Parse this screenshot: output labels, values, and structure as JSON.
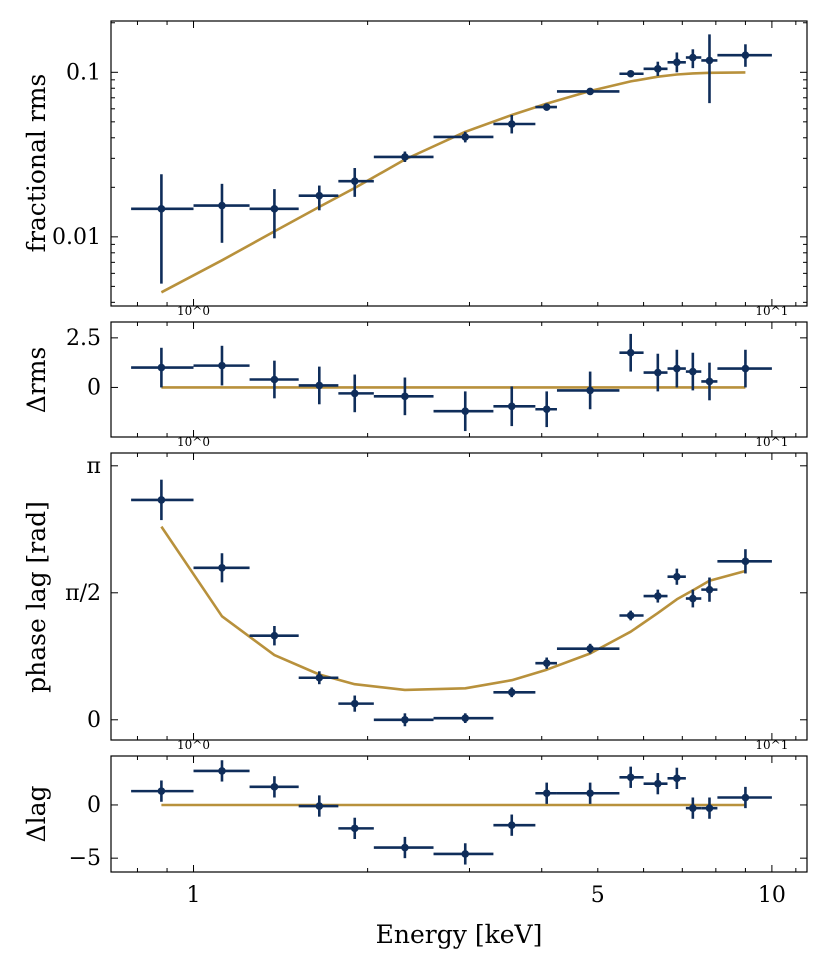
{
  "chart_data": {
    "type": "scatter",
    "xlabel": "Energy [keV]",
    "xscale": "log",
    "xlim": [
      0.72,
      11.5
    ],
    "x_major_ticks": [
      1,
      10
    ],
    "x_major_tick_labels_panels": [
      "10^0",
      "10^1"
    ],
    "x_bottom_tick_values": [
      1,
      5,
      10
    ],
    "x_bottom_tick_labels": [
      "1",
      "5",
      "10"
    ],
    "colors": {
      "data": "#0f2d5a",
      "model": "#b8913c"
    },
    "panels": [
      {
        "id": "rms",
        "ylabel": "fractional rms",
        "yscale": "log",
        "ylim": [
          0.0038,
          0.205
        ],
        "yticks": [
          0.01,
          0.1
        ],
        "ytick_labels": [
          "0.01",
          "0.1"
        ],
        "data": [
          {
            "x": 0.88,
            "xerr": [
              0.78,
              1.0
            ],
            "y": 0.0148,
            "yerr": [
              0.0052,
              0.024
            ]
          },
          {
            "x": 1.12,
            "xerr": [
              1.0,
              1.25
            ],
            "y": 0.0155,
            "yerr": [
              0.0092,
              0.021
            ]
          },
          {
            "x": 1.38,
            "xerr": [
              1.25,
              1.52
            ],
            "y": 0.0148,
            "yerr": [
              0.0098,
              0.0195
            ]
          },
          {
            "x": 1.65,
            "xerr": [
              1.52,
              1.78
            ],
            "y": 0.0178,
            "yerr": [
              0.0145,
              0.0205
            ]
          },
          {
            "x": 1.9,
            "xerr": [
              1.78,
              2.05
            ],
            "y": 0.0218,
            "yerr": [
              0.0175,
              0.0262
            ]
          },
          {
            "x": 2.32,
            "xerr": [
              2.05,
              2.6
            ],
            "y": 0.0306,
            "yerr": [
              0.0285,
              0.033
            ]
          },
          {
            "x": 2.95,
            "xerr": [
              2.6,
              3.3
            ],
            "y": 0.0405,
            "yerr": [
              0.0375,
              0.0435
            ]
          },
          {
            "x": 3.55,
            "xerr": [
              3.3,
              3.9
            ],
            "y": 0.0485,
            "yerr": [
              0.0425,
              0.055
            ]
          },
          {
            "x": 4.08,
            "xerr": [
              3.9,
              4.25
            ],
            "y": 0.0615,
            "yerr": [
              0.0585,
              0.0645
            ]
          },
          {
            "x": 4.85,
            "xerr": [
              4.25,
              5.45
            ],
            "y": 0.0765,
            "yerr": [
              0.0745,
              0.0785
            ]
          },
          {
            "x": 5.7,
            "xerr": [
              5.45,
              6.0
            ],
            "y": 0.098,
            "yerr": [
              0.096,
              0.1
            ]
          },
          {
            "x": 6.35,
            "xerr": [
              6.0,
              6.6
            ],
            "y": 0.105,
            "yerr": [
              0.095,
              0.116
            ]
          },
          {
            "x": 6.85,
            "xerr": [
              6.6,
              7.1
            ],
            "y": 0.115,
            "yerr": [
              0.1,
              0.132
            ]
          },
          {
            "x": 7.3,
            "xerr": [
              7.1,
              7.55
            ],
            "y": 0.123,
            "yerr": [
              0.106,
              0.138
            ]
          },
          {
            "x": 7.8,
            "xerr": [
              7.55,
              8.05
            ],
            "y": 0.118,
            "yerr": [
              0.065,
              0.17
            ]
          },
          {
            "x": 9.0,
            "xerr": [
              8.05,
              10.0
            ],
            "y": 0.127,
            "yerr": [
              0.108,
              0.148
            ]
          }
        ],
        "model": {
          "x": [
            0.88,
            1.12,
            1.38,
            1.65,
            1.9,
            2.32,
            2.95,
            3.55,
            4.08,
            4.85,
            5.7,
            6.35,
            6.85,
            7.3,
            7.8,
            9.0
          ],
          "y": [
            0.0046,
            0.0072,
            0.0108,
            0.0152,
            0.0198,
            0.0295,
            0.0435,
            0.055,
            0.0645,
            0.077,
            0.088,
            0.094,
            0.097,
            0.0985,
            0.0993,
            0.0998
          ]
        }
      },
      {
        "id": "drms",
        "ylabel": "Δrms",
        "ylim": [
          -2.5,
          3.3
        ],
        "yticks": [
          0,
          2.5
        ],
        "ytick_labels": [
          "0",
          "2.5"
        ],
        "data": [
          {
            "x": 0.88,
            "xerr": [
              0.78,
              1.0
            ],
            "y": 1.0,
            "yerr": 1.0
          },
          {
            "x": 1.12,
            "xerr": [
              1.0,
              1.25
            ],
            "y": 1.1,
            "yerr": 1.0
          },
          {
            "x": 1.38,
            "xerr": [
              1.25,
              1.52
            ],
            "y": 0.4,
            "yerr": 0.95
          },
          {
            "x": 1.65,
            "xerr": [
              1.52,
              1.78
            ],
            "y": 0.1,
            "yerr": 0.95
          },
          {
            "x": 1.9,
            "xerr": [
              1.78,
              2.05
            ],
            "y": -0.3,
            "yerr": 0.95
          },
          {
            "x": 2.32,
            "xerr": [
              2.05,
              2.6
            ],
            "y": -0.45,
            "yerr": 0.95
          },
          {
            "x": 2.95,
            "xerr": [
              2.6,
              3.3
            ],
            "y": -1.2,
            "yerr": 1.0
          },
          {
            "x": 3.55,
            "xerr": [
              3.3,
              3.9
            ],
            "y": -0.95,
            "yerr": 1.0
          },
          {
            "x": 4.08,
            "xerr": [
              3.9,
              4.25
            ],
            "y": -1.1,
            "yerr": 0.9
          },
          {
            "x": 4.85,
            "xerr": [
              4.25,
              5.45
            ],
            "y": -0.15,
            "yerr": 0.95
          },
          {
            "x": 5.7,
            "xerr": [
              5.45,
              6.0
            ],
            "y": 1.75,
            "yerr": 0.95
          },
          {
            "x": 6.35,
            "xerr": [
              6.0,
              6.6
            ],
            "y": 0.75,
            "yerr": 0.95
          },
          {
            "x": 6.85,
            "xerr": [
              6.6,
              7.1
            ],
            "y": 0.95,
            "yerr": 0.95
          },
          {
            "x": 7.3,
            "xerr": [
              7.1,
              7.55
            ],
            "y": 0.8,
            "yerr": 0.95
          },
          {
            "x": 7.8,
            "xerr": [
              7.55,
              8.05
            ],
            "y": 0.3,
            "yerr": 0.95
          },
          {
            "x": 9.0,
            "xerr": [
              8.05,
              10.0
            ],
            "y": 0.95,
            "yerr": 0.95
          }
        ],
        "model": {
          "x": [
            0.88,
            9.0
          ],
          "y": [
            0,
            0
          ]
        }
      },
      {
        "id": "lag",
        "ylabel": "phase lag [rad]",
        "ylim": [
          -0.25,
          3.3
        ],
        "yticks": [
          0,
          1.5708,
          3.1416
        ],
        "ytick_labels": [
          "0",
          "π/2",
          "π"
        ],
        "data": [
          {
            "x": 0.88,
            "xerr": [
              0.78,
              1.0
            ],
            "y": 2.72,
            "yerr": 0.25
          },
          {
            "x": 1.12,
            "xerr": [
              1.0,
              1.25
            ],
            "y": 1.88,
            "yerr": 0.18
          },
          {
            "x": 1.38,
            "xerr": [
              1.25,
              1.52
            ],
            "y": 1.04,
            "yerr": 0.12
          },
          {
            "x": 1.65,
            "xerr": [
              1.52,
              1.78
            ],
            "y": 0.52,
            "yerr": 0.08
          },
          {
            "x": 1.9,
            "xerr": [
              1.78,
              2.05
            ],
            "y": 0.2,
            "yerr": 0.1
          },
          {
            "x": 2.32,
            "xerr": [
              2.05,
              2.6
            ],
            "y": 0.0,
            "yerr": 0.08
          },
          {
            "x": 2.95,
            "xerr": [
              2.6,
              3.3
            ],
            "y": 0.02,
            "yerr": 0.06
          },
          {
            "x": 3.55,
            "xerr": [
              3.3,
              3.9
            ],
            "y": 0.34,
            "yerr": 0.06
          },
          {
            "x": 4.08,
            "xerr": [
              3.9,
              4.25
            ],
            "y": 0.7,
            "yerr": 0.07
          },
          {
            "x": 4.85,
            "xerr": [
              4.25,
              5.45
            ],
            "y": 0.88,
            "yerr": 0.06
          },
          {
            "x": 5.7,
            "xerr": [
              5.45,
              6.0
            ],
            "y": 1.29,
            "yerr": 0.06
          },
          {
            "x": 6.35,
            "xerr": [
              6.0,
              6.6
            ],
            "y": 1.53,
            "yerr": 0.08
          },
          {
            "x": 6.85,
            "xerr": [
              6.6,
              7.1
            ],
            "y": 1.77,
            "yerr": 0.1
          },
          {
            "x": 7.3,
            "xerr": [
              7.1,
              7.55
            ],
            "y": 1.5,
            "yerr": 0.11
          },
          {
            "x": 7.8,
            "xerr": [
              7.55,
              8.05
            ],
            "y": 1.61,
            "yerr": 0.15
          },
          {
            "x": 9.0,
            "xerr": [
              8.05,
              10.0
            ],
            "y": 1.96,
            "yerr": 0.15
          }
        ],
        "model": {
          "x": [
            0.88,
            1.12,
            1.38,
            1.65,
            1.9,
            2.32,
            2.95,
            3.55,
            4.08,
            4.85,
            5.7,
            6.35,
            6.85,
            7.3,
            7.8,
            9.0
          ],
          "y": [
            2.39,
            1.28,
            0.8,
            0.56,
            0.44,
            0.37,
            0.39,
            0.49,
            0.62,
            0.82,
            1.09,
            1.32,
            1.49,
            1.6,
            1.72,
            1.84
          ]
        }
      },
      {
        "id": "dlag",
        "ylabel": "Δlag",
        "ylim": [
          -6.3,
          4.6
        ],
        "yticks": [
          -5,
          0
        ],
        "ytick_labels": [
          "−5",
          "0"
        ],
        "data": [
          {
            "x": 0.88,
            "xerr": [
              0.78,
              1.0
            ],
            "y": 1.3,
            "yerr": 1.0
          },
          {
            "x": 1.12,
            "xerr": [
              1.0,
              1.25
            ],
            "y": 3.2,
            "yerr": 1.0
          },
          {
            "x": 1.38,
            "xerr": [
              1.25,
              1.52
            ],
            "y": 1.7,
            "yerr": 1.0
          },
          {
            "x": 1.65,
            "xerr": [
              1.52,
              1.78
            ],
            "y": -0.1,
            "yerr": 1.0
          },
          {
            "x": 1.9,
            "xerr": [
              1.78,
              2.05
            ],
            "y": -2.2,
            "yerr": 1.0
          },
          {
            "x": 2.32,
            "xerr": [
              2.05,
              2.6
            ],
            "y": -4.0,
            "yerr": 1.0
          },
          {
            "x": 2.95,
            "xerr": [
              2.6,
              3.3
            ],
            "y": -4.6,
            "yerr": 1.0
          },
          {
            "x": 3.55,
            "xerr": [
              3.3,
              3.9
            ],
            "y": -1.9,
            "yerr": 1.0
          },
          {
            "x": 4.08,
            "xerr": [
              3.9,
              4.25
            ],
            "y": 1.1,
            "yerr": 1.0
          },
          {
            "x": 4.85,
            "xerr": [
              4.25,
              5.45
            ],
            "y": 1.1,
            "yerr": 1.0
          },
          {
            "x": 5.7,
            "xerr": [
              5.45,
              6.0
            ],
            "y": 2.6,
            "yerr": 1.0
          },
          {
            "x": 6.35,
            "xerr": [
              6.0,
              6.6
            ],
            "y": 2.0,
            "yerr": 1.0
          },
          {
            "x": 6.85,
            "xerr": [
              6.6,
              7.1
            ],
            "y": 2.5,
            "yerr": 1.0
          },
          {
            "x": 7.3,
            "xerr": [
              7.1,
              7.55
            ],
            "y": -0.3,
            "yerr": 1.0
          },
          {
            "x": 7.8,
            "xerr": [
              7.55,
              8.05
            ],
            "y": -0.3,
            "yerr": 1.0
          },
          {
            "x": 9.0,
            "xerr": [
              8.05,
              10.0
            ],
            "y": 0.7,
            "yerr": 1.0
          }
        ],
        "model": {
          "x": [
            0.88,
            9.0
          ],
          "y": [
            0,
            0
          ]
        }
      }
    ]
  }
}
